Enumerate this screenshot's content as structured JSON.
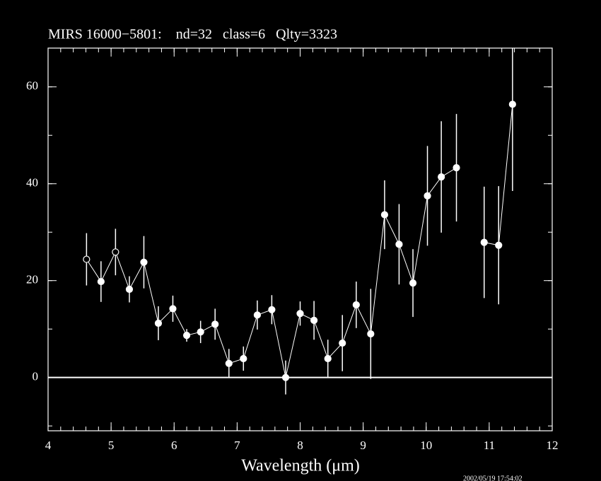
{
  "chart_data": {
    "type": "errorbar",
    "title": "MIRS 16000−5801:    nd=32   class=6   Qlty=3323",
    "x_label": "Wavelength (μm)",
    "timestamp": "2002/05/19 17:54:02",
    "xlim": [
      4,
      12
    ],
    "xticks": [
      4,
      5,
      6,
      7,
      8,
      9,
      10,
      11,
      12
    ],
    "xminor_step": 0.2,
    "ylim": [
      -11,
      68
    ],
    "yticks": [
      0,
      20,
      40,
      60
    ],
    "yminor_step": 10,
    "hline": 0,
    "color": "#ffffff",
    "series": [
      {
        "x": [
          4.61,
          4.84,
          5.07,
          5.29,
          5.52,
          5.75,
          5.98,
          6.2,
          6.42,
          6.65,
          6.87,
          7.1,
          7.32,
          7.55,
          7.77,
          8.0,
          8.22,
          8.44,
          8.67,
          8.89,
          9.12,
          9.34,
          9.57,
          9.79,
          10.02,
          10.24,
          10.48
        ],
        "values": [
          24.4,
          19.8,
          25.9,
          18.2,
          23.8,
          11.2,
          14.2,
          8.7,
          9.4,
          11.0,
          2.9,
          3.9,
          12.9,
          14.0,
          0,
          13.2,
          11.8,
          3.9,
          7.1,
          15.0,
          9.0,
          33.6,
          27.5,
          19.5,
          37.5,
          41.4,
          43.3
        ],
        "errors": [
          5.4,
          4.2,
          4.8,
          2.7,
          5.4,
          3.5,
          2.7,
          1.3,
          2.3,
          3.2,
          3.0,
          2.5,
          3.0,
          3.0,
          3.5,
          2.5,
          4.0,
          3.9,
          5.8,
          4.8,
          9.3,
          7.1,
          8.3,
          7.0,
          10.3,
          11.5,
          11.1
        ],
        "markers": [
          "open",
          "filled",
          "open",
          "filled",
          "filled",
          "filled",
          "filled",
          "filled",
          "filled",
          "filled",
          "filled",
          "filled",
          "filled",
          "filled",
          "filled",
          "filled",
          "filled",
          "filled",
          "filled",
          "filled",
          "filled",
          "filled",
          "filled",
          "filled",
          "filled",
          "filled",
          "filled"
        ]
      },
      {
        "x": [
          10.92,
          11.15,
          11.37
        ],
        "values": [
          27.9,
          27.3,
          56.4
        ],
        "errors": [
          11.5,
          12.2,
          17.9
        ],
        "markers": [
          "filled",
          "filled",
          "filled"
        ]
      }
    ]
  }
}
